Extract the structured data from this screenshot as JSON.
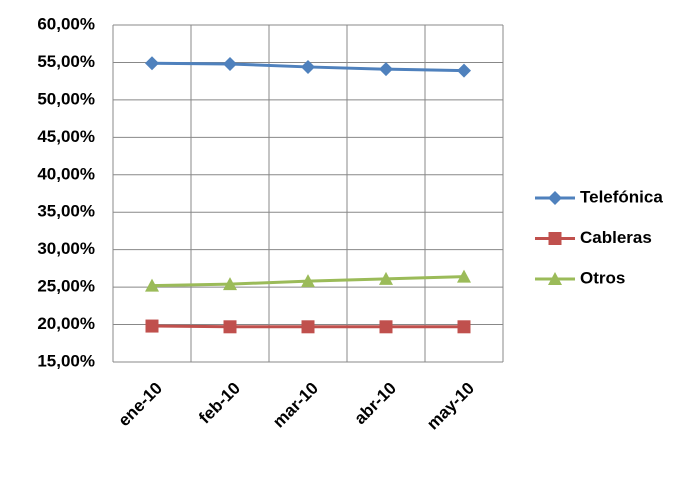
{
  "chart_data": {
    "type": "line",
    "categories": [
      "ene-10",
      "feb-10",
      "mar-10",
      "abr-10",
      "may-10"
    ],
    "series": [
      {
        "name": "Telefónica",
        "color": "#4f81bd",
        "marker": "diamond",
        "values": [
          54.9,
          54.8,
          54.4,
          54.1,
          53.9
        ]
      },
      {
        "name": "Cableras",
        "color": "#c0504d",
        "marker": "square",
        "values": [
          19.8,
          19.7,
          19.7,
          19.7,
          19.7
        ]
      },
      {
        "name": "Otros",
        "color": "#9bbb59",
        "marker": "triangle",
        "values": [
          25.2,
          25.4,
          25.8,
          26.1,
          26.4
        ]
      }
    ],
    "ylim": [
      15,
      60
    ],
    "yticks": [
      {
        "value": 15,
        "label": "15,00%"
      },
      {
        "value": 20,
        "label": "20,00%"
      },
      {
        "value": 25,
        "label": "25,00%"
      },
      {
        "value": 30,
        "label": "30,00%"
      },
      {
        "value": 35,
        "label": "35,00%"
      },
      {
        "value": 40,
        "label": "40,00%"
      },
      {
        "value": 45,
        "label": "45,00%"
      },
      {
        "value": 50,
        "label": "50,00%"
      },
      {
        "value": 55,
        "label": "55,00%"
      },
      {
        "value": 60,
        "label": "60,00%"
      }
    ],
    "grid": true,
    "legend": "right"
  }
}
